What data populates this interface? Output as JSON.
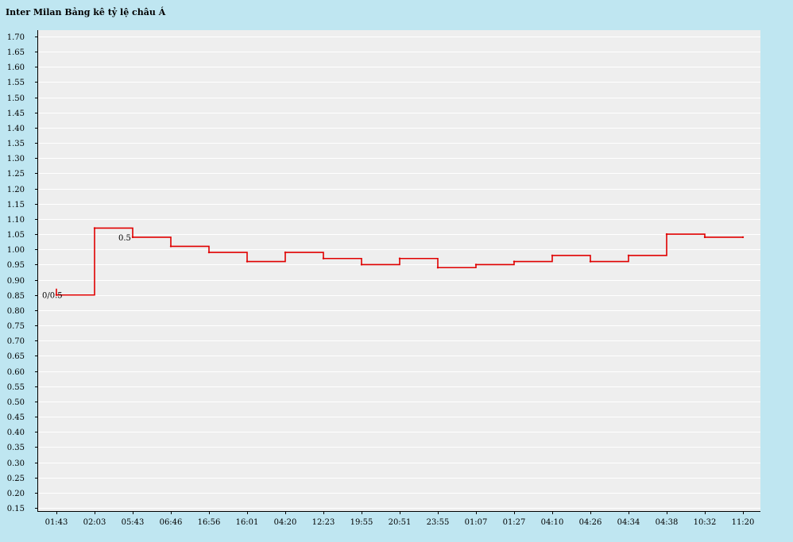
{
  "header": {
    "title": "Inter Milan Bảng kê tỷ lệ châu Á"
  },
  "colors": {
    "background": "#bfe6f1",
    "plot_bg": "#eeeeee",
    "line": "#e00000",
    "grid": "#ffffff"
  },
  "chart_data": {
    "type": "line",
    "step": true,
    "title": "Inter Milan Bảng kê tỷ lệ châu Á",
    "xlabel": "",
    "ylabel": "",
    "ylim": [
      0.15,
      1.7
    ],
    "yticks": [
      "1.70",
      "1.65",
      "1.60",
      "1.55",
      "1.50",
      "1.45",
      "1.40",
      "1.35",
      "1.30",
      "1.25",
      "1.20",
      "1.15",
      "1.10",
      "1.05",
      "1.00",
      "0.95",
      "0.90",
      "0.85",
      "0.80",
      "0.75",
      "0.70",
      "0.65",
      "0.60",
      "0.55",
      "0.50",
      "0.45",
      "0.40",
      "0.35",
      "0.30",
      "0.25",
      "0.20",
      "0.15"
    ],
    "categories": [
      "01:43",
      "02:03",
      "05:43",
      "06:46",
      "16:56",
      "16:01",
      "04:20",
      "12:23",
      "19:55",
      "20:51",
      "23:55",
      "01:07",
      "01:27",
      "04:10",
      "04:26",
      "04:34",
      "04:38",
      "10:32",
      "11:20"
    ],
    "series": [
      {
        "values": [
          0.85,
          1.07,
          1.04,
          1.01,
          0.99,
          0.96,
          0.99,
          0.97,
          0.95,
          0.97,
          0.94,
          0.95,
          0.96,
          0.98,
          0.96,
          0.98,
          1.05,
          1.04,
          1.04
        ]
      }
    ],
    "annotations": [
      {
        "label": "0/0.5",
        "category_index": 0
      },
      {
        "label": "0.5",
        "category_index": 2
      }
    ],
    "grid": true,
    "legend": "none"
  }
}
